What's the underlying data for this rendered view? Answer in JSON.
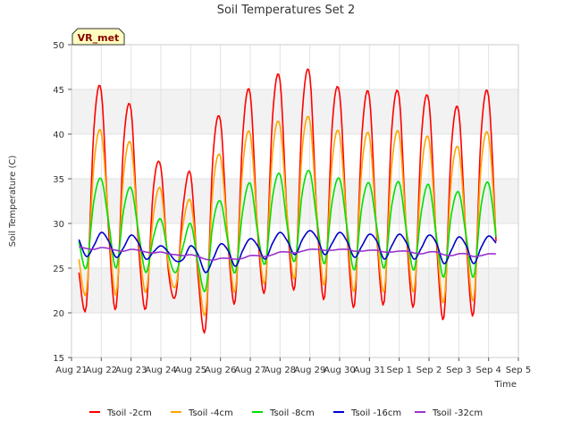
{
  "chart_data": {
    "type": "line",
    "title": "Soil Temperatures Set 2",
    "xlabel": "Time",
    "ylabel": "Soil Temperature (C)",
    "station_label": "VR_met",
    "xlim": [
      0,
      15
    ],
    "ylim": [
      15,
      50
    ],
    "x_ticks": [
      0,
      1,
      2,
      3,
      4,
      5,
      6,
      7,
      8,
      9,
      10,
      11,
      12,
      13,
      14,
      15
    ],
    "x_tick_labels": [
      "Aug 21",
      "Aug 22",
      "Aug 23",
      "Aug 24",
      "Aug 25",
      "Aug 26",
      "Aug 27",
      "Aug 28",
      "Aug 29",
      "Aug 30",
      "Aug 31",
      "Sep 1",
      "Sep 2",
      "Sep 3",
      "Sep 4",
      "Sep 5"
    ],
    "y_ticks": [
      15,
      20,
      25,
      30,
      35,
      40,
      45,
      50
    ],
    "bands": [
      [
        20,
        25
      ],
      [
        30,
        35
      ],
      [
        40,
        45
      ]
    ],
    "band_color": "#f2f2f2",
    "grid": true,
    "legend_position": "bottom",
    "x_start": 0.25,
    "x_step": 0.25,
    "series": [
      {
        "name": "Tsoil -2cm",
        "color": "#ff0000",
        "values": [
          24.5,
          20.8,
          40.5,
          44.8,
          29.0,
          20.6,
          39.0,
          42.7,
          27.5,
          20.5,
          34.0,
          36.3,
          24.8,
          22.0,
          32.0,
          35.5,
          24.0,
          18.3,
          37.5,
          41.5,
          28.0,
          21.4,
          40.0,
          44.5,
          29.0,
          22.7,
          42.0,
          46.0,
          30.0,
          23.0,
          42.5,
          46.5,
          30.0,
          21.8,
          41.0,
          44.5,
          29.0,
          20.9,
          40.0,
          44.2,
          28.5,
          21.3,
          40.5,
          44.1,
          28.5,
          21.0,
          40.0,
          43.6,
          28.0,
          19.5,
          38.5,
          42.5,
          28.0,
          20.0,
          40.0,
          44.2,
          28.0
        ]
      },
      {
        "name": "Tsoil -4cm",
        "color": "#ffa500",
        "values": [
          26.0,
          22.3,
          36.5,
          40.2,
          30.0,
          22.0,
          35.5,
          38.8,
          28.5,
          22.3,
          31.0,
          33.8,
          25.5,
          23.0,
          30.0,
          32.5,
          25.0,
          20.0,
          34.0,
          37.5,
          28.5,
          22.5,
          36.5,
          40.0,
          29.5,
          23.5,
          38.0,
          41.0,
          30.5,
          24.0,
          38.5,
          41.5,
          30.5,
          23.2,
          37.0,
          40.0,
          29.5,
          22.5,
          36.5,
          39.8,
          29.0,
          22.5,
          36.5,
          40.0,
          29.0,
          22.5,
          36.0,
          39.4,
          28.5,
          21.2,
          35.0,
          38.3,
          28.5,
          21.5,
          36.5,
          39.8,
          28.5
        ]
      },
      {
        "name": "Tsoil -8cm",
        "color": "#00e000",
        "values": [
          28.0,
          25.0,
          32.5,
          35.0,
          30.0,
          25.0,
          31.5,
          34.0,
          29.0,
          24.5,
          28.5,
          30.5,
          26.5,
          24.5,
          27.5,
          30.0,
          25.5,
          22.5,
          30.0,
          32.5,
          28.0,
          24.5,
          31.5,
          34.5,
          29.0,
          25.5,
          33.0,
          35.5,
          29.5,
          25.8,
          33.5,
          35.8,
          30.0,
          25.5,
          32.5,
          35.0,
          29.5,
          24.8,
          32.0,
          34.5,
          29.5,
          25.0,
          32.0,
          34.6,
          29.0,
          24.8,
          31.5,
          34.3,
          28.5,
          24.0,
          31.0,
          33.5,
          28.5,
          24.0,
          32.0,
          34.5,
          28.5
        ]
      },
      {
        "name": "Tsoil -16cm",
        "color": "#0000cd",
        "values": [
          28.2,
          26.3,
          27.5,
          29.0,
          28.0,
          26.2,
          27.3,
          28.7,
          27.8,
          26.0,
          26.8,
          27.5,
          26.8,
          25.8,
          26.0,
          27.5,
          26.5,
          24.5,
          26.0,
          27.7,
          27.0,
          25.2,
          27.0,
          28.3,
          27.5,
          26.0,
          27.8,
          29.0,
          28.0,
          26.5,
          28.2,
          29.2,
          28.3,
          26.5,
          27.8,
          29.0,
          28.0,
          26.2,
          27.5,
          28.8,
          28.0,
          26.0,
          27.5,
          28.8,
          27.8,
          26.0,
          27.3,
          28.7,
          27.8,
          25.5,
          27.0,
          28.5,
          27.5,
          25.5,
          27.3,
          28.6,
          27.8
        ]
      },
      {
        "name": "Tsoil -32cm",
        "color": "#9932cc",
        "values": [
          27.4,
          27.2,
          27.1,
          27.3,
          27.2,
          27.0,
          26.9,
          27.1,
          27.0,
          26.8,
          26.7,
          26.8,
          26.6,
          26.5,
          26.4,
          26.5,
          26.3,
          26.0,
          25.9,
          26.1,
          26.1,
          26.0,
          26.1,
          26.4,
          26.4,
          26.3,
          26.5,
          26.8,
          26.8,
          26.7,
          26.9,
          27.1,
          27.1,
          27.0,
          27.0,
          27.1,
          27.1,
          26.9,
          26.9,
          27.0,
          27.0,
          26.8,
          26.8,
          26.9,
          26.9,
          26.7,
          26.6,
          26.8,
          26.8,
          26.5,
          26.4,
          26.6,
          26.6,
          26.3,
          26.4,
          26.6,
          26.6
        ]
      }
    ]
  }
}
